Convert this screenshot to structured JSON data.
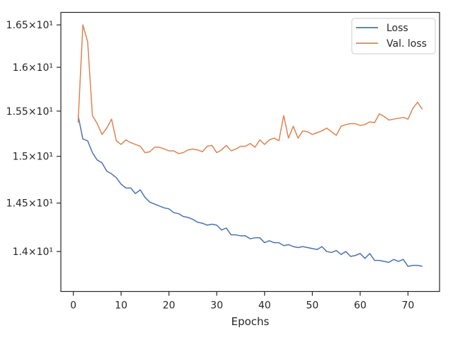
{
  "chart_data": {
    "type": "line",
    "title": "",
    "xlabel": "Epochs",
    "ylabel": "",
    "xlim": [
      -2.6,
      76.6
    ],
    "ylim": [
      13.6,
      16.65
    ],
    "yscale": "log",
    "grid": false,
    "legend_placement": "top-right",
    "xticks": [
      0,
      10,
      20,
      30,
      40,
      50,
      60,
      70
    ],
    "xtick_labels": [
      "0",
      "10",
      "20",
      "30",
      "40",
      "50",
      "60",
      "70"
    ],
    "yticks": [
      14.0,
      14.5,
      15.0,
      15.5,
      16.0,
      16.5
    ],
    "ytick_labels": [
      "1.4×10¹",
      "1.45×10¹",
      "1.5×10¹",
      "1.55×10¹",
      "1.6×10¹",
      "1.65×10¹"
    ],
    "x": [
      1,
      2,
      3,
      4,
      5,
      6,
      7,
      8,
      9,
      10,
      11,
      12,
      13,
      14,
      15,
      16,
      17,
      18,
      19,
      20,
      21,
      22,
      23,
      24,
      25,
      26,
      27,
      28,
      29,
      30,
      31,
      32,
      33,
      34,
      35,
      36,
      37,
      38,
      39,
      40,
      41,
      42,
      43,
      44,
      45,
      46,
      47,
      48,
      49,
      50,
      51,
      52,
      53,
      54,
      55,
      56,
      57,
      58,
      59,
      60,
      61,
      62,
      63,
      64,
      65,
      66,
      67,
      68,
      69,
      70,
      71,
      72,
      73
    ],
    "series": [
      {
        "name": "Loss",
        "color": "#4c72b0",
        "values": [
          15.45,
          15.19,
          15.17,
          15.04,
          14.96,
          14.93,
          14.84,
          14.81,
          14.77,
          14.7,
          14.66,
          14.66,
          14.6,
          14.64,
          14.56,
          14.51,
          14.49,
          14.47,
          14.45,
          14.44,
          14.4,
          14.39,
          14.36,
          14.35,
          14.33,
          14.3,
          14.29,
          14.27,
          14.28,
          14.27,
          14.22,
          14.24,
          14.17,
          14.17,
          14.16,
          14.16,
          14.13,
          14.14,
          14.14,
          14.09,
          14.11,
          14.09,
          14.09,
          14.06,
          14.07,
          14.05,
          14.04,
          14.05,
          14.04,
          14.03,
          14.02,
          14.05,
          14.0,
          13.99,
          14.01,
          13.97,
          14.0,
          13.95,
          13.96,
          13.98,
          13.93,
          13.98,
          13.91,
          13.91,
          13.9,
          13.89,
          13.92,
          13.9,
          13.92,
          13.85,
          13.86,
          13.86,
          13.85
        ]
      },
      {
        "name": "Val. loss",
        "color": "#dd8452",
        "values": [
          15.37,
          16.5,
          16.3,
          15.45,
          15.36,
          15.24,
          15.31,
          15.41,
          15.17,
          15.13,
          15.18,
          15.15,
          15.13,
          15.11,
          15.04,
          15.05,
          15.1,
          15.1,
          15.08,
          15.06,
          15.06,
          15.03,
          15.04,
          15.07,
          15.08,
          15.07,
          15.05,
          15.11,
          15.12,
          15.04,
          15.07,
          15.12,
          15.06,
          15.08,
          15.11,
          15.11,
          15.14,
          15.1,
          15.18,
          15.13,
          15.18,
          15.2,
          15.17,
          15.45,
          15.2,
          15.33,
          15.2,
          15.28,
          15.27,
          15.24,
          15.26,
          15.28,
          15.31,
          15.27,
          15.23,
          15.33,
          15.35,
          15.36,
          15.36,
          15.34,
          15.35,
          15.38,
          15.37,
          15.47,
          15.44,
          15.4,
          15.41,
          15.42,
          15.43,
          15.41,
          15.53,
          15.6,
          15.52
        ]
      }
    ]
  }
}
